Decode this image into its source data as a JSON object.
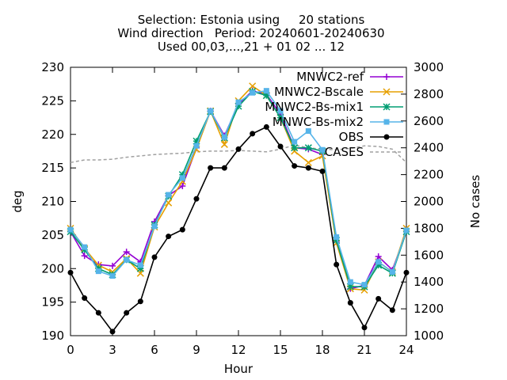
{
  "chart_data": {
    "type": "line",
    "title_lines": [
      "Selection: Estonia using     20 stations",
      "Wind direction   Period: 20240601-20240630",
      "Used 00,03,...,21 + 01 02 ... 12"
    ],
    "xlabel": "Hour",
    "ylabel": "deg",
    "y2label": "No cases",
    "xlim": [
      0,
      24
    ],
    "ylim": [
      190,
      230
    ],
    "y2lim": [
      1000,
      3000
    ],
    "x_ticks": [
      "0",
      "3",
      "6",
      "9",
      "12",
      "15",
      "18",
      "21",
      "24"
    ],
    "y_ticks": [
      "190",
      "195",
      "200",
      "205",
      "210",
      "215",
      "220",
      "225",
      "230"
    ],
    "y2_ticks": [
      "1000",
      "1200",
      "1400",
      "1600",
      "1800",
      "2000",
      "2200",
      "2400",
      "2600",
      "2800",
      "3000"
    ],
    "grid": false,
    "legend_position": "top-right",
    "x": [
      0,
      1,
      2,
      3,
      4,
      5,
      6,
      7,
      8,
      9,
      10,
      11,
      12,
      13,
      14,
      15,
      16,
      17,
      18,
      19,
      20,
      21,
      22,
      23,
      24
    ],
    "series": [
      {
        "name": "MNWC2-ref",
        "color": "#9400d3",
        "marker": "plus",
        "values": [
          205.5,
          201.9,
          200.6,
          200.4,
          202.5,
          201.0,
          207.0,
          210.9,
          212.3,
          218.0,
          223.5,
          219.8,
          224.5,
          226.5,
          226.0,
          223.0,
          218.0,
          217.8,
          217.0,
          204.0,
          197.0,
          197.5,
          201.8,
          199.8,
          205.5
        ]
      },
      {
        "name": "MNWC2-Bscale",
        "color": "#e69f00",
        "marker": "cross",
        "values": [
          206.0,
          203.0,
          200.5,
          199.5,
          201.5,
          199.3,
          206.2,
          209.8,
          213.0,
          217.8,
          223.5,
          218.5,
          225.0,
          227.2,
          225.8,
          222.5,
          217.5,
          215.8,
          216.8,
          203.8,
          197.0,
          196.8,
          201.0,
          199.5,
          206.0
        ]
      },
      {
        "name": "MNWC2-Bs-mix1",
        "color": "#009e73",
        "marker": "star",
        "values": [
          205.5,
          202.8,
          200.0,
          199.1,
          201.3,
          200.0,
          206.5,
          210.8,
          214.0,
          219.0,
          223.4,
          219.5,
          224.2,
          226.4,
          225.8,
          222.5,
          218.0,
          218.0,
          217.5,
          204.2,
          197.3,
          197.3,
          200.5,
          199.3,
          205.5
        ]
      },
      {
        "name": "MNWC-Bs-mix2",
        "color": "#56b4e9",
        "marker": "box",
        "values": [
          205.8,
          203.2,
          199.6,
          198.9,
          201.3,
          200.5,
          206.3,
          211.0,
          213.5,
          218.3,
          223.5,
          219.6,
          224.8,
          226.2,
          226.5,
          223.5,
          218.9,
          220.5,
          217.7,
          204.7,
          198.0,
          197.6,
          201.0,
          199.5,
          205.7
        ]
      },
      {
        "name": "OBS",
        "color": "#000000",
        "marker": "circle",
        "values": [
          199.4,
          195.6,
          193.4,
          190.6,
          193.4,
          195.1,
          201.7,
          204.8,
          205.8,
          210.4,
          215.0,
          215.0,
          217.8,
          220.1,
          221.1,
          218.2,
          215.3,
          215.0,
          214.5,
          200.6,
          194.9,
          191.2,
          195.5,
          193.8,
          199.4
        ]
      }
    ],
    "cases_series": {
      "name": "CASES",
      "color": "#a0a0a0",
      "style": "dashed",
      "axis": "y2",
      "x": [
        0,
        1,
        2,
        3,
        4,
        5,
        6,
        7,
        8,
        9,
        10,
        11,
        12,
        13,
        14,
        15,
        16,
        17,
        18,
        19,
        20,
        21,
        22,
        23,
        24
      ],
      "values": [
        2290,
        2310,
        2310,
        2315,
        2330,
        2340,
        2350,
        2355,
        2360,
        2370,
        2375,
        2375,
        2380,
        2375,
        2370,
        2390,
        2420,
        2400,
        2390,
        2385,
        2395,
        2415,
        2410,
        2390,
        2290
      ]
    }
  }
}
